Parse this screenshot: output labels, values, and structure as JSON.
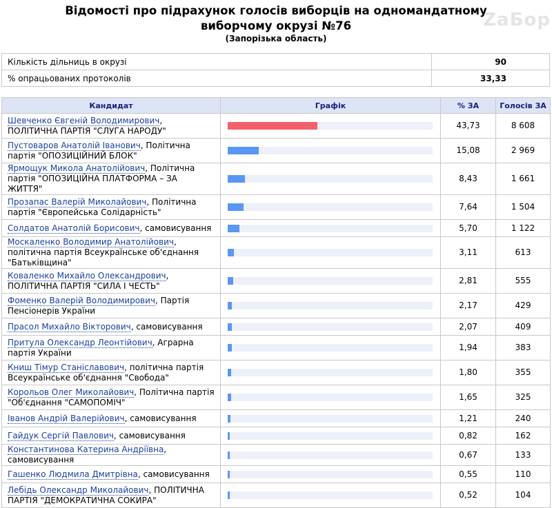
{
  "header": {
    "title_line1": "Відомості про підрахунок голосів виборців на одномандатному",
    "title_line2": "виборчому окрузі №76",
    "region": "(Запорізька область)",
    "logo_text": "ZaБор"
  },
  "summary": [
    {
      "label": "Кількість дільниць в окрузі",
      "value": "90"
    },
    {
      "label": "% опрацьованих протоколів",
      "value": "33,33"
    }
  ],
  "columns": {
    "candidate": "Кандидат",
    "chart": "Графік",
    "percent": "% ЗА",
    "votes": "Голосів ЗА"
  },
  "colors": {
    "leader_bar": "#f4606a",
    "bar": "#5897f4",
    "track": "#eef0f9",
    "header_bg": "#dde4f6"
  },
  "chart_data": {
    "type": "bar",
    "xlim": [
      0,
      100
    ],
    "categories": [
      "Шевченко Євгеній Володимирович",
      "Пустоваров Анатолій Іванович",
      "Ярмощук Микола Анатолійович",
      "Прозапас Валерій Миколайович",
      "Солдатов Анатолій Борисович",
      "Москаленко Володимир Анатолійович",
      "Коваленко Михайло Олександрович",
      "Фоменко Валерій Володимирович",
      "Прасол Михайло Вікторович",
      "Притула Олександр Леонтійович",
      "Книш Тімур Станіславович",
      "Корольов Олег Миколайович",
      "Іванов Андрій Валерійович",
      "Гайдук Сергій Павлович",
      "Константинова Катерина Андріївна",
      "Гашенко Людмила Дмитрівна",
      "Лебідь Олександр Миколайович"
    ],
    "values": [
      43.73,
      15.08,
      8.43,
      7.64,
      5.7,
      3.11,
      2.81,
      2.17,
      2.07,
      1.94,
      1.8,
      1.65,
      1.21,
      0.82,
      0.67,
      0.55,
      0.52
    ],
    "rows": [
      {
        "name": "Шевченко Євгеній Володимирович",
        "party": ", ПОЛІТИЧНА ПАРТІЯ \"СЛУГА НАРОДУ\"",
        "percent": "43,73",
        "votes": "8 608",
        "lines": 2
      },
      {
        "name": "Пустоваров Анатолій Іванович",
        "party": ", Політична партія \"ОПОЗИЦІЙНИЙ БЛОК\"",
        "percent": "15,08",
        "votes": "2 969",
        "lines": 2
      },
      {
        "name": "Ярмощук Микола Анатолійович",
        "party": ", Політична партія \"ОПОЗИЦІЙНА ПЛАТФОРМА – ЗА ЖИТТЯ\"",
        "percent": "8,43",
        "votes": "1 661",
        "lines": 2
      },
      {
        "name": "Прозапас Валерій Миколайович",
        "party": ", Політична партія \"Європейська Солідарність\"",
        "percent": "7,64",
        "votes": "1 504",
        "lines": 2
      },
      {
        "name": "Солдатов Анатолій Борисович",
        "party": ", самовисування",
        "percent": "5,70",
        "votes": "1 122",
        "lines": 1
      },
      {
        "name": "Москаленко Володимир Анатолійович",
        "party": ", політична партія Всеукраїнське об'єднання \"Батьківщина\"",
        "percent": "3,11",
        "votes": "613",
        "lines": 2
      },
      {
        "name": "Коваленко Михайло Олександрович",
        "party": ", ПОЛІТИЧНА ПАРТІЯ \"СИЛА І ЧЕСТЬ\"",
        "percent": "2,81",
        "votes": "555",
        "lines": 2
      },
      {
        "name": "Фоменко Валерій Володимирович",
        "party": ", Партія Пенсіонерів України",
        "percent": "2,17",
        "votes": "429",
        "lines": 2
      },
      {
        "name": "Прасол Михайло Вікторович",
        "party": ", самовисування",
        "percent": "2,07",
        "votes": "409",
        "lines": 1
      },
      {
        "name": "Притула Олександр Леонтійович",
        "party": ", Аграрна партія України",
        "percent": "1,94",
        "votes": "383",
        "lines": 2
      },
      {
        "name": "Книш Тімур Станіславович",
        "party": ", політична партія Всеукраїнське об'єднання \"Свобода\"",
        "percent": "1,80",
        "votes": "355",
        "lines": 2
      },
      {
        "name": "Корольов Олег Миколайович",
        "party": ", Політична партія \"Об'єднання \"САМОПОМІЧ\"",
        "percent": "1,65",
        "votes": "325",
        "lines": 2
      },
      {
        "name": "Іванов Андрій Валерійович",
        "party": ", самовисування",
        "percent": "1,21",
        "votes": "240",
        "lines": 1
      },
      {
        "name": "Гайдук Сергій Павлович",
        "party": ", самовисування",
        "percent": "0,82",
        "votes": "162",
        "lines": 1
      },
      {
        "name": "Константинова Катерина Андріївна",
        "party": ", самовисування",
        "percent": "0,67",
        "votes": "133",
        "lines": 1
      },
      {
        "name": "Гашенко Людмила Дмитрівна",
        "party": ", самовисування",
        "percent": "0,55",
        "votes": "110",
        "lines": 1
      },
      {
        "name": "Лебідь Олександр Миколайович",
        "party": ", ПОЛІТИЧНА ПАРТІЯ \"ДЕМОКРАТИЧНА СОКИРА\"",
        "percent": "0,52",
        "votes": "104",
        "lines": 2
      }
    ]
  }
}
